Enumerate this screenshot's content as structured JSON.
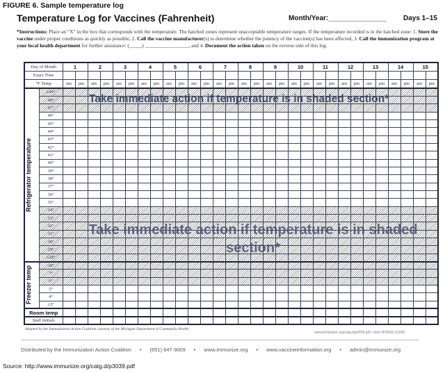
{
  "figure_caption": "FIGURE 6. Sample temperature log",
  "title": "Temperature Log for Vaccines (Fahrenheit)",
  "month_year_label": "Month/Year:_______________",
  "days_label": "Days 1–15",
  "instructions": {
    "p1": "*Instructions:",
    "p2": " Place an “X” in the box that corresponds with the temperature. The hatched zones represent unacceptable temperature ranges. If the temperature recorded is in the hatched zone: 1. ",
    "p3": "Store the vaccine",
    "p4": " under proper conditions as quickly as possible, 2. ",
    "p5": "Call the vaccine manufacturer",
    "p6": "(s) to determine whether the potency of the vaccine(s) has been affected, 3. ",
    "p7": "Call the immunization program at your local health department",
    "p8": " for further assistance: (_____) _________________,",
    "p9": " and 4. ",
    "p10": "Document the action taken",
    "p11": " on the reverse side of this log."
  },
  "table": {
    "day_of_month_label": "Day of Month",
    "exact_time_label": "Exact Time",
    "temp_label": "°F Temp",
    "days": [
      "1",
      "2",
      "3",
      "4",
      "5",
      "6",
      "7",
      "8",
      "9",
      "10",
      "11",
      "12",
      "13",
      "14",
      "15"
    ],
    "am": "am",
    "pm": "pm",
    "refrigerator_label": "Refrigerator temperature",
    "refrigerator_rows": [
      "≥49°",
      "48°",
      "47°",
      "46°",
      "45°",
      "44°",
      "43°",
      "42°",
      "41°",
      "40°",
      "39°",
      "38°",
      "37°",
      "36°",
      "35°",
      "34°",
      "33°",
      "32°",
      "31°",
      "30°",
      "29°",
      "≤28°"
    ],
    "refrigerator_hatched": [
      true,
      true,
      true,
      false,
      false,
      false,
      false,
      false,
      false,
      false,
      false,
      false,
      false,
      false,
      false,
      true,
      true,
      true,
      true,
      true,
      true,
      true
    ],
    "freezer_label": "Freezer temp",
    "freezer_rows": [
      "≥8°",
      "7°",
      "6°",
      "5°",
      "4°",
      "≤3°"
    ],
    "freezer_hatched": [
      true,
      true,
      true,
      false,
      false,
      false
    ],
    "room_temp_label": "Room temp",
    "staff_initials_label": "Staff Initials"
  },
  "warning_top": "Take immediate action if temperature is in shaded section*",
  "warning_bottom": "Take immediate action if temperature is in shaded section*",
  "adapted_credit": "Adapted by the Immunization Action Coalition courtesy of the Michigan Department of Community Health",
  "item_ref": "www.immunize.org/catg.d/p3039.pdf • Item #P3039 (11/05)",
  "footer": {
    "distributor": "Distributed by the Immunization Action Coalition",
    "phone": "(651) 647-9009",
    "site1": "www.immunize.org",
    "site2": "www.vaccineinformation.org",
    "email": "admin@immunize.org",
    "bullet": "•"
  },
  "source": "Source:  http://www.immunize.org/catg.d/p3039.pdf"
}
